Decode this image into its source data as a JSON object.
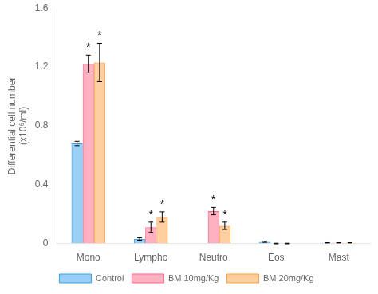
{
  "chart_data": {
    "type": "bar",
    "categories": [
      "Mono",
      "Lympho",
      "Neutro",
      "Eos",
      "Mast"
    ],
    "series": [
      {
        "name": "Control",
        "values": [
          0.68,
          0.03,
          0.0,
          0.012,
          0.005
        ],
        "errors": [
          0.015,
          0.008,
          0.0,
          0.004,
          0.001
        ]
      },
      {
        "name": "BM 10mg/Kg",
        "values": [
          1.22,
          0.11,
          0.22,
          0.0,
          0.005
        ],
        "errors": [
          0.06,
          0.035,
          0.025,
          0.002,
          0.001
        ]
      },
      {
        "name": "BM 20mg/Kg",
        "values": [
          1.23,
          0.18,
          0.12,
          0.0,
          0.005
        ],
        "errors": [
          0.13,
          0.035,
          0.025,
          0.002,
          0.001
        ]
      }
    ],
    "annotations": [
      {
        "text": "*",
        "series": "BM 10mg/Kg",
        "category": "Mono"
      },
      {
        "text": "*",
        "series": "BM 20mg/Kg",
        "category": "Mono"
      },
      {
        "text": "*",
        "series": "BM 10mg/Kg",
        "category": "Lympho"
      },
      {
        "text": "*",
        "series": "BM 20mg/Kg",
        "category": "Lympho"
      },
      {
        "text": "*",
        "series": "BM 10mg/Kg",
        "category": "Neutro"
      },
      {
        "text": "*",
        "series": "BM 20mg/Kg",
        "category": "Neutro"
      }
    ],
    "ylabel": "Differential cell number\n(x10⁶/ml)",
    "ylim": [
      0,
      1.6
    ],
    "yticks": [
      0,
      0.4,
      0.8,
      1.2,
      1.6
    ],
    "grid": false,
    "legend": "bottom"
  }
}
